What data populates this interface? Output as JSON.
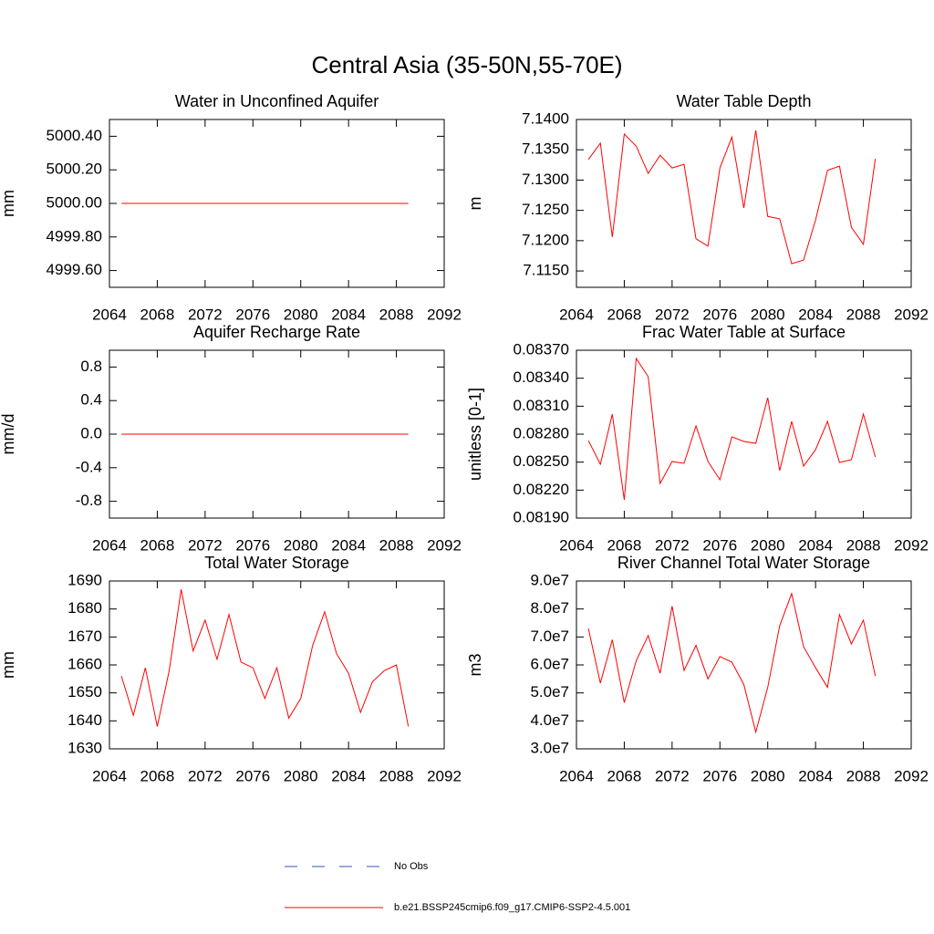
{
  "title": "Central Asia (35-50N,55-70E)",
  "legend": [
    {
      "name": "No Obs",
      "color": "#3355bb",
      "dashed": true
    },
    {
      "name": "b.e21.BSSP245cmip6.f09_g17.CMIP6-SSP2-4.5.001",
      "color": "#ff0000",
      "dashed": false
    }
  ],
  "chart_data": [
    {
      "type": "line",
      "title": "Water in Unconfined Aquifer",
      "ylabel": "mm",
      "x": [
        2065,
        2066,
        2067,
        2068,
        2069,
        2070,
        2071,
        2072,
        2073,
        2074,
        2075,
        2076,
        2077,
        2078,
        2079,
        2080,
        2081,
        2082,
        2083,
        2084,
        2085,
        2086,
        2087,
        2088,
        2089
      ],
      "series": [
        {
          "color": "#ff0000",
          "values": [
            5000,
            5000,
            5000,
            5000,
            5000,
            5000,
            5000,
            5000,
            5000,
            5000,
            5000,
            5000,
            5000,
            5000,
            5000,
            5000,
            5000,
            5000,
            5000,
            5000,
            5000,
            5000,
            5000,
            5000,
            5000
          ]
        }
      ],
      "xlim": [
        2064,
        2092
      ],
      "xticks": [
        2064,
        2068,
        2072,
        2076,
        2080,
        2084,
        2088,
        2092
      ],
      "ylim": [
        4999.5,
        5000.5
      ],
      "yticks": [
        {
          "value": 4999.6,
          "label": "4999.60"
        },
        {
          "value": 4999.8,
          "label": "4999.80"
        },
        {
          "value": 5000.0,
          "label": "5000.00"
        },
        {
          "value": 5000.2,
          "label": "5000.20"
        },
        {
          "value": 5000.4,
          "label": "5000.40"
        }
      ]
    },
    {
      "type": "line",
      "title": "Water Table Depth",
      "ylabel": "m",
      "x": [
        2065,
        2066,
        2067,
        2068,
        2069,
        2070,
        2071,
        2072,
        2073,
        2074,
        2075,
        2076,
        2077,
        2078,
        2079,
        2080,
        2081,
        2082,
        2083,
        2084,
        2085,
        2086,
        2087,
        2088,
        2089
      ],
      "series": [
        {
          "color": "#ff0000",
          "values": [
            7.1334,
            7.1361,
            7.1206,
            7.1376,
            7.1356,
            7.1311,
            7.1341,
            7.132,
            7.1326,
            7.1203,
            7.1191,
            7.132,
            7.1371,
            7.1254,
            7.1382,
            7.124,
            7.1236,
            7.1162,
            7.1168,
            7.1234,
            7.1316,
            7.1323,
            7.1222,
            7.1194,
            7.1335
          ]
        }
      ],
      "xlim": [
        2064,
        2092
      ],
      "xticks": [
        2064,
        2068,
        2072,
        2076,
        2080,
        2084,
        2088,
        2092
      ],
      "ylim": [
        7.1123,
        7.14
      ],
      "yticks": [
        {
          "value": 7.115,
          "label": "7.1150"
        },
        {
          "value": 7.12,
          "label": "7.1200"
        },
        {
          "value": 7.125,
          "label": "7.1250"
        },
        {
          "value": 7.13,
          "label": "7.1300"
        },
        {
          "value": 7.135,
          "label": "7.1350"
        },
        {
          "value": 7.14,
          "label": "7.1400"
        }
      ]
    },
    {
      "type": "line",
      "title": "Aquifer Recharge Rate",
      "ylabel": "mm/d",
      "x": [
        2065,
        2066,
        2067,
        2068,
        2069,
        2070,
        2071,
        2072,
        2073,
        2074,
        2075,
        2076,
        2077,
        2078,
        2079,
        2080,
        2081,
        2082,
        2083,
        2084,
        2085,
        2086,
        2087,
        2088,
        2089
      ],
      "series": [
        {
          "color": "#ff0000",
          "values": [
            0,
            0,
            0,
            0,
            0,
            0,
            0,
            0,
            0,
            0,
            0,
            0,
            0,
            0,
            0,
            0,
            0,
            0,
            0,
            0,
            0,
            0,
            0,
            0,
            0
          ]
        }
      ],
      "xlim": [
        2064,
        2092
      ],
      "xticks": [
        2064,
        2068,
        2072,
        2076,
        2080,
        2084,
        2088,
        2092
      ],
      "ylim": [
        -1,
        1
      ],
      "yticks": [
        -0.8,
        -0.4,
        {
          "value": 0,
          "label": "0.0"
        },
        0.4,
        0.8
      ]
    },
    {
      "type": "line",
      "title": "Frac Water Table at Surface",
      "ylabel": "unitless [0-1]",
      "x": [
        2065,
        2066,
        2067,
        2068,
        2069,
        2070,
        2071,
        2072,
        2073,
        2074,
        2075,
        2076,
        2077,
        2078,
        2079,
        2080,
        2081,
        2082,
        2083,
        2084,
        2085,
        2086,
        2087,
        2088,
        2089
      ],
      "series": [
        {
          "color": "#ff0000",
          "values": [
            0.082731,
            0.082477,
            0.083015,
            0.082096,
            0.083612,
            0.083416,
            0.082272,
            0.082507,
            0.082487,
            0.082888,
            0.082507,
            0.082311,
            0.082771,
            0.082722,
            0.082702,
            0.083191,
            0.082409,
            0.082937,
            0.082458,
            0.082634,
            0.082937,
            0.082497,
            0.082526,
            0.083015,
            0.082555
          ]
        }
      ],
      "xlim": [
        2064,
        2092
      ],
      "xticks": [
        2064,
        2068,
        2072,
        2076,
        2080,
        2084,
        2088,
        2092
      ],
      "ylim": [
        0.0819,
        0.0837
      ],
      "yticks": [
        {
          "value": 0.0819,
          "label": "0.08190"
        },
        {
          "value": 0.0822,
          "label": "0.08220"
        },
        {
          "value": 0.0825,
          "label": "0.08250"
        },
        {
          "value": 0.0828,
          "label": "0.08280"
        },
        {
          "value": 0.0831,
          "label": "0.08310"
        },
        {
          "value": 0.0834,
          "label": "0.08340"
        },
        {
          "value": 0.0837,
          "label": "0.08370"
        }
      ]
    },
    {
      "type": "line",
      "title": "Total Water Storage",
      "ylabel": "mm",
      "x": [
        2065,
        2066,
        2067,
        2068,
        2069,
        2070,
        2071,
        2072,
        2073,
        2074,
        2075,
        2076,
        2077,
        2078,
        2079,
        2080,
        2081,
        2082,
        2083,
        2084,
        2085,
        2086,
        2087,
        2088,
        2089
      ],
      "series": [
        {
          "color": "#ff0000",
          "values": [
            1656,
            1642,
            1659,
            1638,
            1658,
            1687,
            1665,
            1676,
            1662,
            1678,
            1661,
            1659,
            1648,
            1659,
            1641,
            1648,
            1667,
            1679,
            1664,
            1657,
            1643,
            1654,
            1658,
            1660,
            1638
          ]
        }
      ],
      "xlim": [
        2064,
        2092
      ],
      "xticks": [
        2064,
        2068,
        2072,
        2076,
        2080,
        2084,
        2088,
        2092
      ],
      "ylim": [
        1630,
        1690
      ],
      "yticks": [
        1630,
        1640,
        1650,
        1660,
        1670,
        1680,
        1690
      ]
    },
    {
      "type": "line",
      "title": "River Channel Total Water Storage",
      "ylabel": "m3",
      "x": [
        2065,
        2066,
        2067,
        2068,
        2069,
        2070,
        2071,
        2072,
        2073,
        2074,
        2075,
        2076,
        2077,
        2078,
        2079,
        2080,
        2081,
        2082,
        2083,
        2084,
        2085,
        2086,
        2087,
        2088,
        2089
      ],
      "series": [
        {
          "color": "#ff0000",
          "values": [
            73000000,
            53500000,
            69000000,
            46500000,
            61500000,
            70500000,
            57000000,
            81000000,
            58000000,
            67000000,
            55000000,
            63000000,
            61000000,
            53000000,
            36000000,
            52000000,
            74000000,
            85500000,
            66500000,
            59000000,
            52000000,
            78000000,
            67500000,
            76000000,
            56000000
          ]
        }
      ],
      "xlim": [
        2064,
        2092
      ],
      "xticks": [
        2064,
        2068,
        2072,
        2076,
        2080,
        2084,
        2088,
        2092
      ],
      "ylim": [
        30000000,
        90000000
      ],
      "yticks": [
        {
          "value": 30000000,
          "label": "3.0e7"
        },
        {
          "value": 40000000,
          "label": "4.0e7"
        },
        {
          "value": 50000000,
          "label": "5.0e7"
        },
        {
          "value": 60000000,
          "label": "6.0e7"
        },
        {
          "value": 70000000,
          "label": "7.0e7"
        },
        {
          "value": 80000000,
          "label": "8.0e7"
        },
        {
          "value": 90000000,
          "label": "9.0e7"
        }
      ]
    }
  ]
}
